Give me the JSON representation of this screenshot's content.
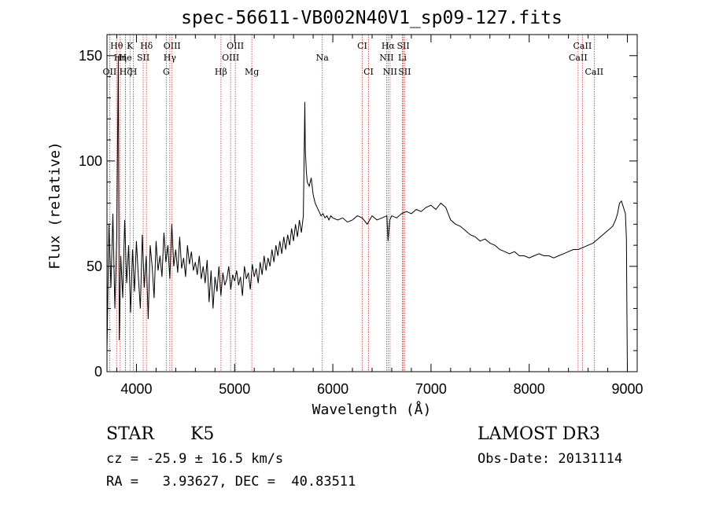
{
  "chart_data": {
    "type": "line",
    "title": "spec-56611-VB002N40V1_sp09-127.fits",
    "xlabel": "Wavelength (Å)",
    "ylabel": "Flux (relative)",
    "xlim": [
      3700,
      9100
    ],
    "ylim": [
      0,
      160
    ],
    "xticks": [
      4000,
      5000,
      6000,
      7000,
      8000,
      9000
    ],
    "yticks": [
      0,
      50,
      100,
      150
    ],
    "line_color": "#000000",
    "marker_color": "#d03030",
    "lines": [
      {
        "label": "Hθ",
        "wave": 3798,
        "row": 0
      },
      {
        "label": "K",
        "wave": 3934,
        "row": 0
      },
      {
        "label": "Hδ",
        "wave": 4102,
        "row": 0
      },
      {
        "label": "OIII",
        "wave": 4363,
        "row": 0
      },
      {
        "label": "OIII",
        "wave": 5007,
        "row": 0
      },
      {
        "label": "CI",
        "wave": 6300,
        "row": 0
      },
      {
        "label": "Hα",
        "wave": 6563,
        "row": 0
      },
      {
        "label": "SII",
        "wave": 6717,
        "row": 0
      },
      {
        "label": "CaII",
        "wave": 8542,
        "row": 0
      },
      {
        "label": "Hη",
        "wave": 3835,
        "row": 1
      },
      {
        "label": "He",
        "wave": 3889,
        "row": 1
      },
      {
        "label": "SII",
        "wave": 4069,
        "row": 1
      },
      {
        "label": "Hγ",
        "wave": 4340,
        "row": 1
      },
      {
        "label": "OIII",
        "wave": 4959,
        "row": 1
      },
      {
        "label": "Na",
        "wave": 5893,
        "row": 1
      },
      {
        "label": "NII",
        "wave": 6548,
        "row": 1
      },
      {
        "label": "Li",
        "wave": 6708,
        "row": 1
      },
      {
        "label": "CaII",
        "wave": 8498,
        "row": 1
      },
      {
        "label": "OII",
        "wave": 3727,
        "row": 2
      },
      {
        "label": "Hζ",
        "wave": 3889,
        "row": 2
      },
      {
        "label": "H",
        "wave": 3969,
        "row": 2
      },
      {
        "label": "G",
        "wave": 4304,
        "row": 2
      },
      {
        "label": "Hβ",
        "wave": 4861,
        "row": 2
      },
      {
        "label": "Mg",
        "wave": 5175,
        "row": 2
      },
      {
        "label": "CI",
        "wave": 6364,
        "row": 2
      },
      {
        "label": "NII",
        "wave": 6583,
        "row": 2
      },
      {
        "label": "SII",
        "wave": 6731,
        "row": 2
      },
      {
        "label": "CaII",
        "wave": 8662,
        "row": 2
      }
    ],
    "spectrum": {
      "wave": [
        3700,
        3720,
        3740,
        3760,
        3780,
        3800,
        3815,
        3825,
        3840,
        3860,
        3880,
        3900,
        3920,
        3940,
        3960,
        3980,
        4000,
        4020,
        4040,
        4060,
        4080,
        4100,
        4120,
        4140,
        4160,
        4180,
        4200,
        4220,
        4240,
        4260,
        4280,
        4300,
        4320,
        4340,
        4360,
        4380,
        4400,
        4420,
        4440,
        4460,
        4480,
        4500,
        4520,
        4540,
        4560,
        4580,
        4600,
        4620,
        4640,
        4660,
        4680,
        4700,
        4720,
        4740,
        4760,
        4780,
        4800,
        4820,
        4840,
        4860,
        4880,
        4900,
        4920,
        4940,
        4960,
        4980,
        5000,
        5020,
        5040,
        5060,
        5080,
        5100,
        5120,
        5140,
        5160,
        5180,
        5200,
        5220,
        5240,
        5260,
        5280,
        5300,
        5320,
        5340,
        5360,
        5380,
        5400,
        5420,
        5440,
        5460,
        5480,
        5500,
        5520,
        5540,
        5560,
        5580,
        5600,
        5620,
        5640,
        5660,
        5680,
        5700,
        5710,
        5715,
        5720,
        5725,
        5730,
        5740,
        5760,
        5780,
        5800,
        5820,
        5840,
        5860,
        5880,
        5900,
        5920,
        5940,
        5960,
        5980,
        6000,
        6050,
        6100,
        6150,
        6200,
        6250,
        6300,
        6350,
        6400,
        6450,
        6500,
        6550,
        6563,
        6580,
        6600,
        6650,
        6700,
        6750,
        6800,
        6850,
        6900,
        6950,
        7000,
        7050,
        7100,
        7150,
        7200,
        7250,
        7300,
        7350,
        7400,
        7450,
        7500,
        7550,
        7600,
        7650,
        7700,
        7750,
        7800,
        7850,
        7900,
        7950,
        8000,
        8050,
        8100,
        8150,
        8200,
        8250,
        8300,
        8350,
        8400,
        8450,
        8500,
        8550,
        8600,
        8650,
        8700,
        8750,
        8800,
        8850,
        8880,
        8900,
        8920,
        8940,
        8960,
        8980,
        8990,
        8995,
        9000
      ],
      "flux": [
        10,
        70,
        40,
        75,
        30,
        65,
        150,
        15,
        55,
        35,
        72,
        42,
        60,
        28,
        58,
        38,
        62,
        45,
        30,
        65,
        40,
        55,
        25,
        60,
        50,
        35,
        62,
        48,
        55,
        45,
        66,
        52,
        60,
        44,
        70,
        50,
        58,
        47,
        64,
        49,
        54,
        45,
        60,
        51,
        57,
        48,
        52,
        46,
        55,
        44,
        50,
        42,
        53,
        33,
        48,
        30,
        45,
        38,
        50,
        36,
        47,
        41,
        44,
        50,
        39,
        46,
        43,
        48,
        41,
        45,
        36,
        50,
        44,
        47,
        39,
        51,
        45,
        49,
        42,
        52,
        46,
        55,
        48,
        54,
        50,
        58,
        52,
        60,
        55,
        62,
        56,
        64,
        58,
        65,
        60,
        68,
        62,
        70,
        64,
        72,
        66,
        74,
        110,
        128,
        105,
        100,
        95,
        90,
        88,
        92,
        84,
        80,
        78,
        76,
        74,
        75,
        73,
        74,
        72,
        74,
        73,
        72,
        73,
        71,
        72,
        74,
        73,
        70,
        74,
        72,
        73,
        74,
        62,
        72,
        74,
        73,
        75,
        76,
        75,
        77,
        76,
        78,
        79,
        77,
        80,
        78,
        72,
        70,
        69,
        67,
        65,
        64,
        62,
        63,
        61,
        60,
        58,
        57,
        56,
        57,
        55,
        55,
        54,
        55,
        56,
        55,
        55,
        54,
        55,
        56,
        57,
        58,
        58,
        59,
        60,
        61,
        63,
        65,
        67,
        69,
        72,
        75,
        80,
        81,
        78,
        75,
        63,
        30,
        0
      ]
    },
    "info": {
      "class_label": "STAR",
      "subclass": "K5",
      "survey": "LAMOST DR3",
      "cz_line": "cz = -25.9 ± 16.5 km/s",
      "obs_date_line": "Obs-Date: 20131114",
      "coords_line": "RA =   3.93627, DEC =  40.83511"
    }
  }
}
